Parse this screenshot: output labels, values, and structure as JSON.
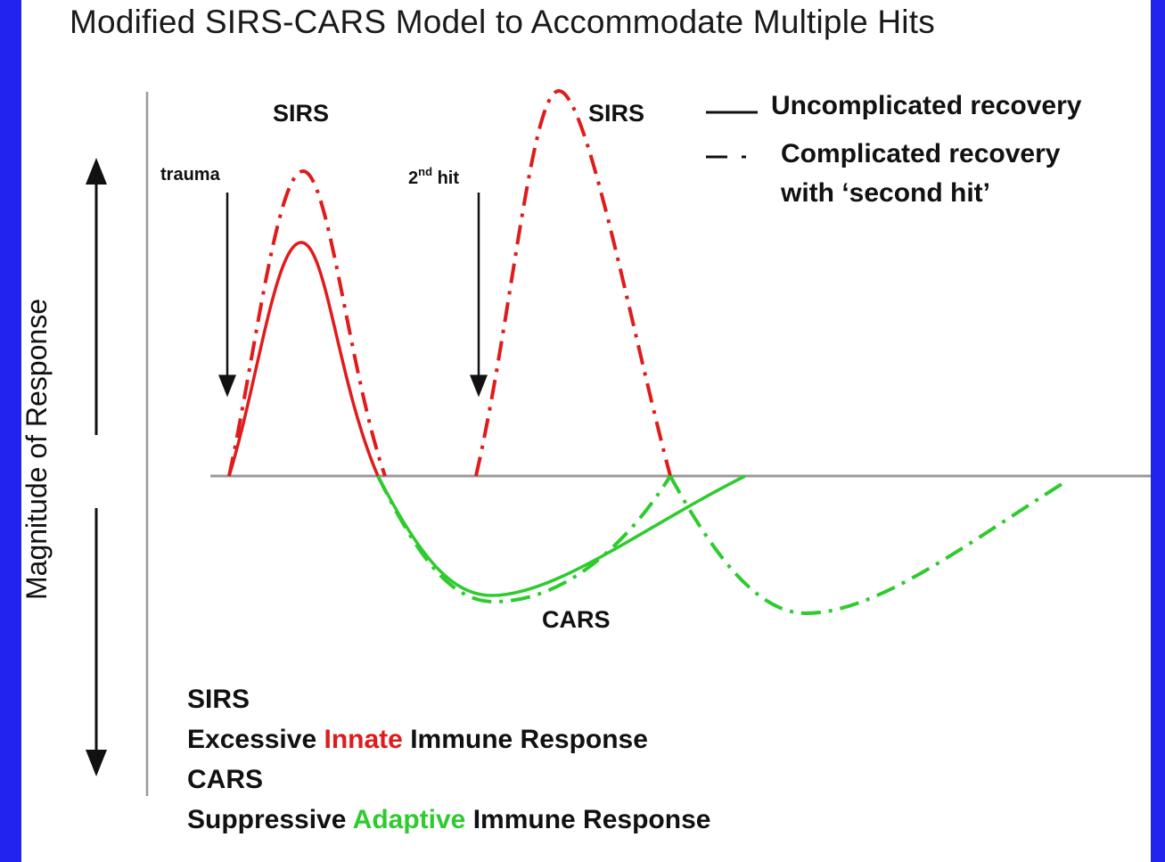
{
  "title": "Modified SIRS-CARS Model to Accommodate Multiple Hits",
  "y_axis_label": "Magnitude of Response",
  "annotations": {
    "sirs_first": "SIRS",
    "sirs_second": "SIRS",
    "trauma": "trauma",
    "second_hit_num": "2",
    "second_hit_sup": "nd",
    "second_hit_word": "hit",
    "cars": "CARS"
  },
  "legend": {
    "solid": "Uncomplicated recovery",
    "dashdot_line1": "Complicated recovery",
    "dashdot_line2": "with ‘second hit’"
  },
  "footer": {
    "sirs_heading": "SIRS",
    "sirs_desc_pre": "Excessive",
    "sirs_desc_highlight": "Innate",
    "sirs_desc_post": "Immune Response",
    "cars_heading": "CARS",
    "cars_desc_pre": "Suppressive",
    "cars_desc_highlight": "Adaptive",
    "cars_desc_post": "Immune Response"
  },
  "colors": {
    "sirs": "#e01b1b",
    "cars": "#2ecb2e",
    "baseline": "#999999",
    "background": "#2323f0"
  }
}
